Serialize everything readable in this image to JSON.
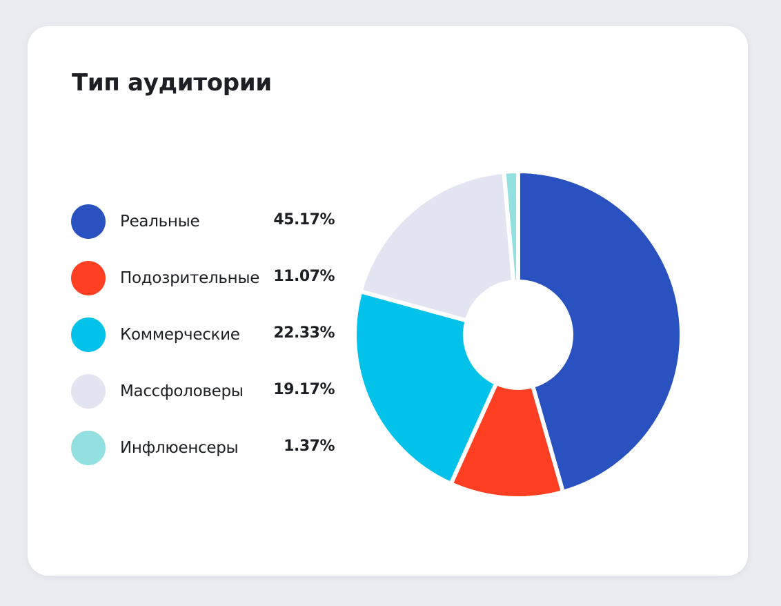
{
  "chart_data": {
    "type": "pie",
    "style": "donut",
    "title": "Тип аудитории",
    "legend_position": "left",
    "slices": [
      {
        "label": "Реальные",
        "value": 45.17,
        "value_text": "45.17%",
        "color": "#2952c0"
      },
      {
        "label": "Подозрительные",
        "value": 11.07,
        "value_text": "11.07%",
        "color": "#fe3f21"
      },
      {
        "label": "Коммерческие",
        "value": 22.33,
        "value_text": "22.33%",
        "color": "#02c2ea"
      },
      {
        "label": "Массфоловеры",
        "value": 19.17,
        "value_text": "19.17%",
        "color": "#e3e4f1"
      },
      {
        "label": "Инфлюенсеры",
        "value": 1.37,
        "value_text": "1.37%",
        "color": "#93e0e1"
      }
    ]
  }
}
